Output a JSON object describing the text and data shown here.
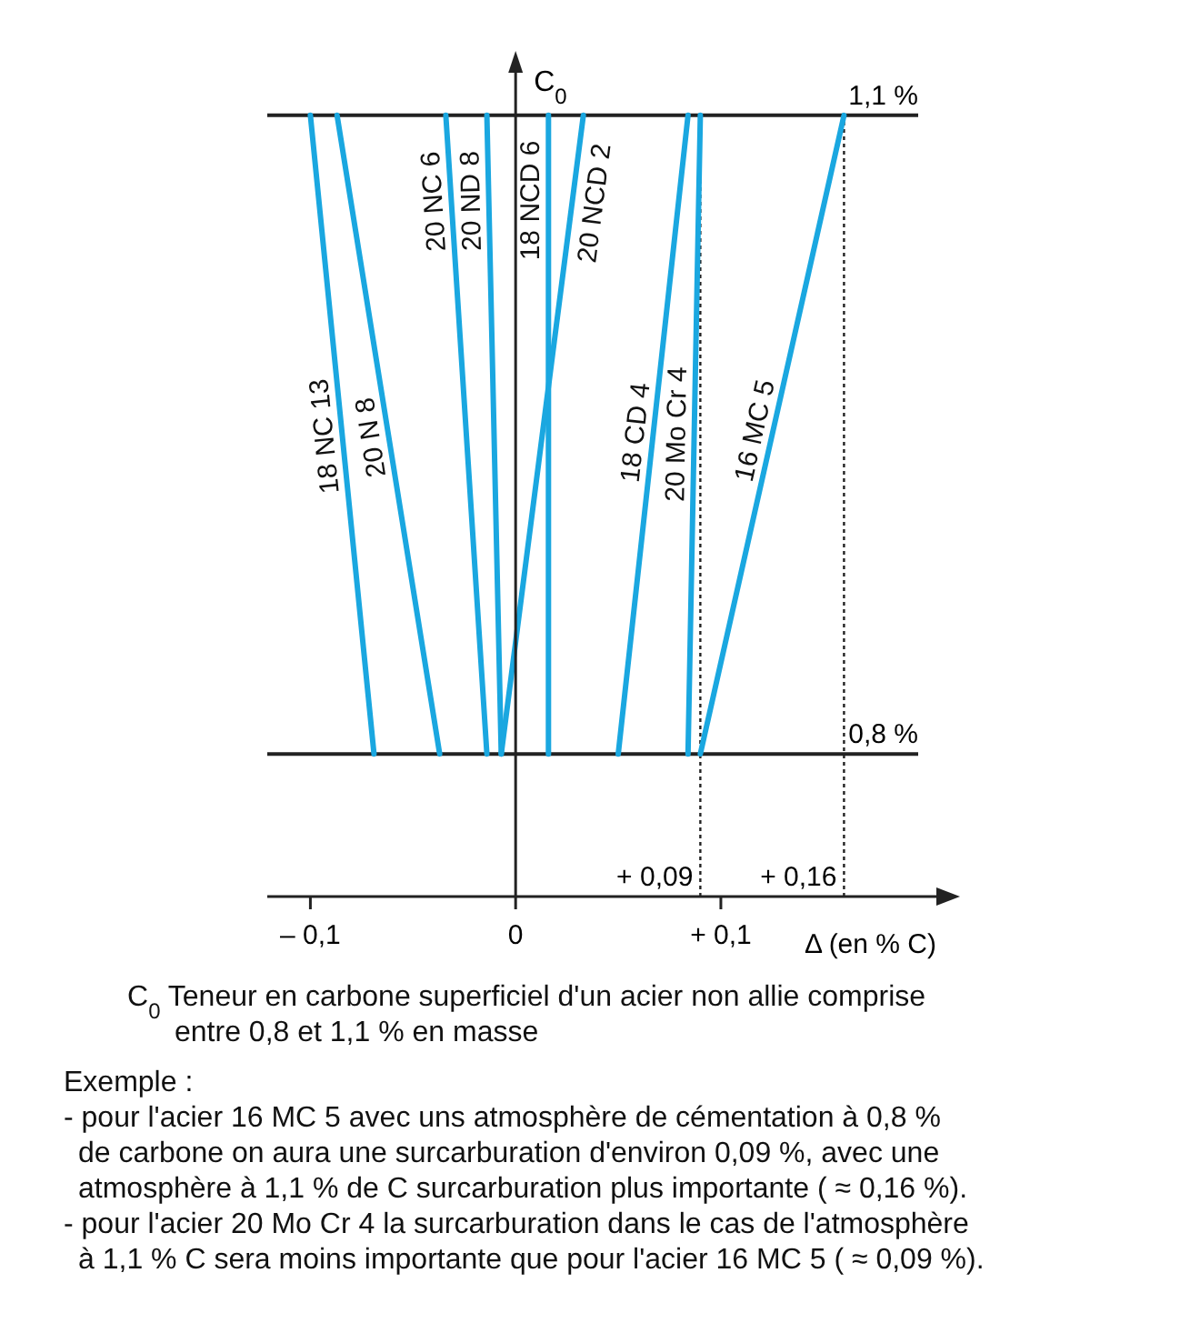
{
  "chart_data": {
    "type": "line",
    "ylabel": "C$_{0}$",
    "xlabel": "Δ (en % C)",
    "xlim": [
      -0.121,
      0.205
    ],
    "xticks": [
      {
        "value": -0.1,
        "label": "– 0,1"
      },
      0,
      {
        "value": 0.1,
        "label": "+ 0,1"
      }
    ],
    "ylim": [
      0.733,
      1.12
    ],
    "tick_labels": "x",
    "marker": "none",
    "line_style": "solid",
    "series": [
      {
        "name": "18 NC 13",
        "color": "#1aa7e0",
        "x": [
          -0.069,
          -0.1
        ],
        "values": [
          0.8,
          1.1
        ]
      },
      {
        "name": "20 N 8",
        "color": "#1aa7e0",
        "x": [
          -0.037,
          -0.087
        ],
        "values": [
          0.8,
          1.1
        ]
      },
      {
        "name": "20 NC 6",
        "color": "#1aa7e0",
        "x": [
          -0.014,
          -0.034
        ],
        "values": [
          0.8,
          1.1
        ]
      },
      {
        "name": "20 ND 8",
        "color": "#1aa7e0",
        "x": [
          -0.007,
          -0.014
        ],
        "values": [
          0.8,
          1.1
        ]
      },
      {
        "name": "18 NCD 6",
        "color": "#1aa7e0",
        "x": [
          0.016,
          0.016
        ],
        "values": [
          0.8,
          1.1
        ]
      },
      {
        "name": "20 NCD 2",
        "color": "#1aa7e0",
        "x": [
          -0.007,
          0.033
        ],
        "values": [
          0.8,
          1.1
        ]
      },
      {
        "name": "18 CD 4",
        "color": "#1aa7e0",
        "x": [
          0.05,
          0.084
        ],
        "values": [
          0.8,
          1.1
        ]
      },
      {
        "name": "20 Mo Cr 4",
        "color": "#1aa7e0",
        "x": [
          0.084,
          0.09
        ],
        "values": [
          0.8,
          1.1
        ]
      },
      {
        "name": "16 MC 5",
        "color": "#1aa7e0",
        "x": [
          0.09,
          0.16
        ],
        "values": [
          0.8,
          1.1
        ]
      }
    ],
    "ref_lines": [
      {
        "axis": "y",
        "value": 0.8,
        "label": "0,8 %",
        "color": "#222222",
        "line_style": "solid"
      },
      {
        "axis": "y",
        "value": 1.1,
        "label": "1,1 %",
        "color": "#222222",
        "line_style": "solid"
      },
      {
        "axis": "x",
        "value": 0.09,
        "label": "+ 0,09",
        "color": "#222222",
        "line_style": "dotted"
      },
      {
        "axis": "x",
        "value": 0.16,
        "label": "+ 0,16",
        "color": "#222222",
        "line_style": "dotted"
      }
    ],
    "annotations": [
      "C$_{0}$ Teneur en carbone superficiel d'un acier non allie comprise\nentre 0,8 et 1,1 % en masse",
      "Exemple :",
      "- pour l'acier 16 MC 5 avec uns atmosphère de cémentation à 0,8 %\nde carbone on aura une surcarburation d'environ 0,09 %, avec une\natmosphère à 1,1 % de C surcarburation plus importante ( ≈ 0,16 %).",
      "- pour l'acier 20 Mo Cr 4 la surcarburation dans le cas de l'atmosphère\nà 1,1 % C sera moins importante que pour l'acier 16 MC 5 ( ≈ 0,09 %)."
    ]
  }
}
